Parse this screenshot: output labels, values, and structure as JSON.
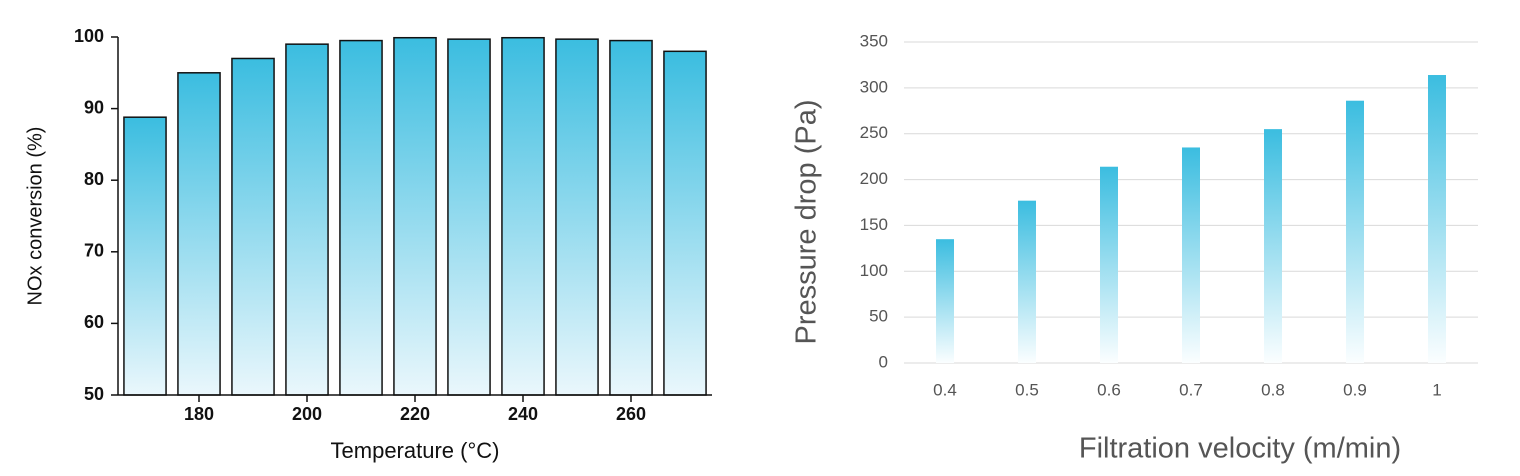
{
  "chart_data": [
    {
      "type": "bar",
      "x_label": "Temperature (°C)",
      "y_label": "NOx conversion (%)",
      "x": [
        170,
        180,
        190,
        200,
        210,
        220,
        230,
        240,
        250,
        260,
        270
      ],
      "values": [
        88.8,
        95,
        97,
        99,
        99.5,
        99.9,
        99.7,
        99.9,
        99.7,
        99.5,
        98
      ],
      "color": "#3bbde0",
      "xlim": [
        165,
        275
      ],
      "xticks": [
        180,
        200,
        220,
        240,
        260
      ],
      "ylim": [
        50,
        100
      ],
      "yticks": [
        50,
        60,
        70,
        80,
        90,
        100
      ],
      "grid": false
    },
    {
      "type": "bar",
      "x_label": "Filtration velocity (m/min)",
      "y_label": "Pressure drop (Pa)",
      "categories": [
        "0.4",
        "0.5",
        "0.6",
        "0.7",
        "0.8",
        "0.9",
        "1"
      ],
      "values": [
        135,
        177,
        214,
        235,
        255,
        286,
        314
      ],
      "color": "#3bbde0",
      "ylim": [
        0,
        350
      ],
      "yticks": [
        0,
        50,
        100,
        150,
        200,
        250,
        300,
        350
      ],
      "grid": true
    }
  ]
}
